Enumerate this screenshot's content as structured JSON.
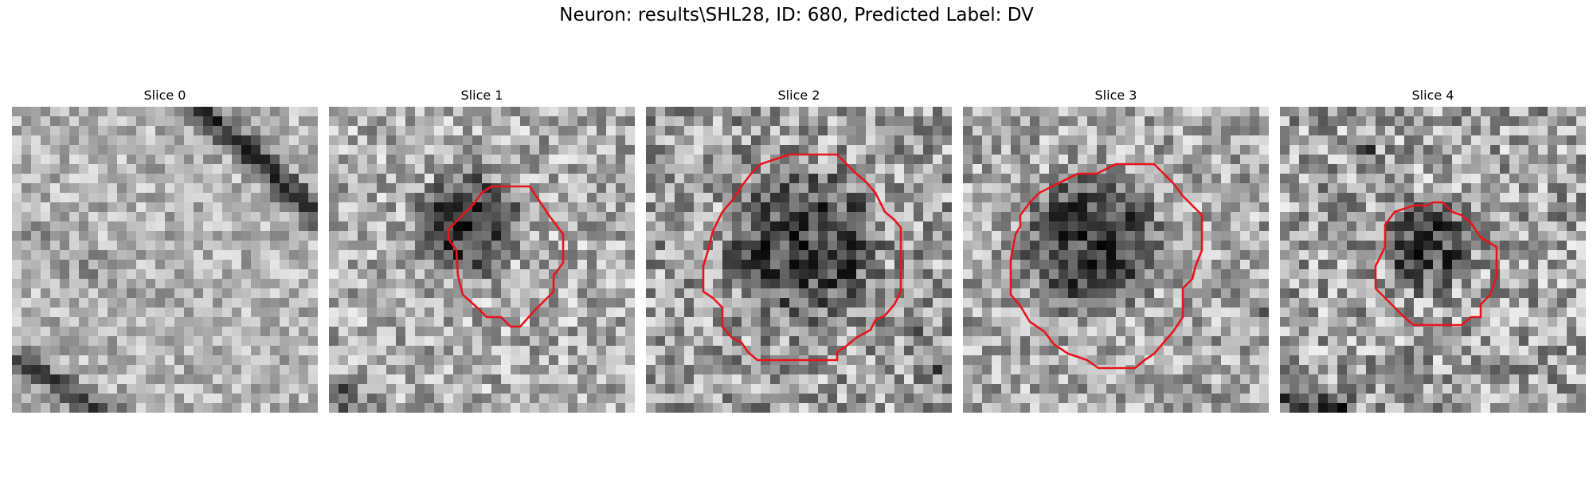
{
  "figure": {
    "title": "Neuron: results\\SHL28, ID: 680, Predicted Label: DV"
  },
  "slices": [
    {
      "title": "Slice 0",
      "has_contour": false
    },
    {
      "title": "Slice 1",
      "has_contour": true
    },
    {
      "title": "Slice 2",
      "has_contour": true
    },
    {
      "title": "Slice 3",
      "has_contour": true
    },
    {
      "title": "Slice 4",
      "has_contour": true
    }
  ],
  "colors": {
    "contour": "#e8141c",
    "background": "#ffffff",
    "colormap": "gray"
  }
}
